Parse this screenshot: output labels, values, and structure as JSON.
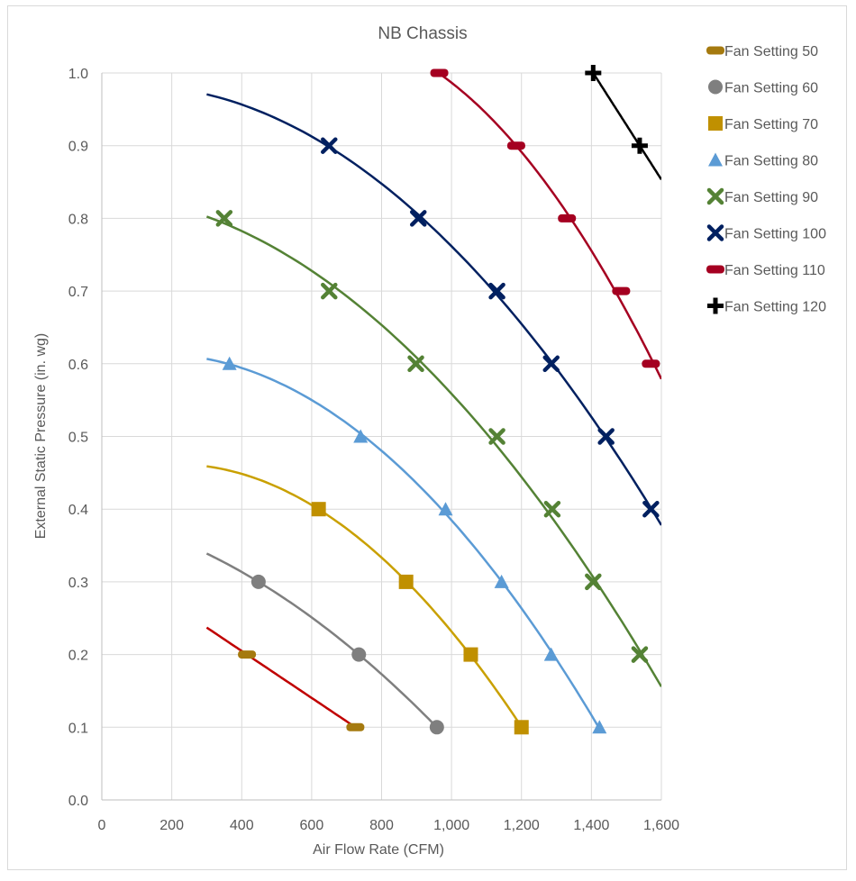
{
  "chart_data": {
    "type": "scatter",
    "title": "NB Chassis",
    "xlabel": "Air Flow Rate (CFM)",
    "ylabel": "External Static Pressure (in. wg)",
    "xlim": [
      0,
      1600
    ],
    "ylim": [
      0,
      1.0
    ],
    "x_ticks": [
      0,
      200,
      400,
      600,
      800,
      1000,
      1200,
      1400,
      1600
    ],
    "x_tick_labels": [
      "0",
      "200",
      "400",
      "600",
      "800",
      "1,000",
      "1,200",
      "1,400",
      "1,600"
    ],
    "y_ticks": [
      0,
      0.1,
      0.2,
      0.3,
      0.4,
      0.5,
      0.6,
      0.7,
      0.8,
      0.9,
      1.0
    ],
    "y_tick_labels": [
      "0.0",
      "0.1",
      "0.2",
      "0.3",
      "0.4",
      "0.5",
      "0.6",
      "0.7",
      "0.8",
      "0.9",
      "1.0"
    ],
    "grid": true,
    "legend_position": "right",
    "series": [
      {
        "name": "Fan Setting 50",
        "marker": "dash",
        "color": "#a57a0f",
        "trend_color": "#c00000",
        "trend_x": [
          300,
          728
        ],
        "points": [
          {
            "x": 415,
            "y": 0.2
          },
          {
            "x": 725,
            "y": 0.1
          }
        ]
      },
      {
        "name": "Fan Setting 60",
        "marker": "circle",
        "color": "#7f7f7f",
        "trend_color": "#7f7f7f",
        "trend_x": [
          300,
          960
        ],
        "points": [
          {
            "x": 448,
            "y": 0.3
          },
          {
            "x": 735,
            "y": 0.2
          },
          {
            "x": 958,
            "y": 0.1
          }
        ]
      },
      {
        "name": "Fan Setting 70",
        "marker": "square",
        "color": "#c09000",
        "trend_color": "#c9a000",
        "trend_x": [
          300,
          1203
        ],
        "points": [
          {
            "x": 620,
            "y": 0.4
          },
          {
            "x": 870,
            "y": 0.3
          },
          {
            "x": 1055,
            "y": 0.2
          },
          {
            "x": 1200,
            "y": 0.1
          }
        ]
      },
      {
        "name": "Fan Setting 80",
        "marker": "triangle",
        "color": "#5b9bd5",
        "trend_color": "#5b9bd5",
        "trend_x": [
          300,
          1425
        ],
        "points": [
          {
            "x": 365,
            "y": 0.6
          },
          {
            "x": 740,
            "y": 0.5
          },
          {
            "x": 983,
            "y": 0.4
          },
          {
            "x": 1143,
            "y": 0.3
          },
          {
            "x": 1285,
            "y": 0.2
          },
          {
            "x": 1423,
            "y": 0.1
          }
        ]
      },
      {
        "name": "Fan Setting 90",
        "marker": "x",
        "color": "#548235",
        "trend_color": "#548235",
        "trend_x": [
          300,
          1600
        ],
        "points": [
          {
            "x": 350,
            "y": 0.8
          },
          {
            "x": 650,
            "y": 0.7
          },
          {
            "x": 898,
            "y": 0.6
          },
          {
            "x": 1130,
            "y": 0.5
          },
          {
            "x": 1288,
            "y": 0.4
          },
          {
            "x": 1405,
            "y": 0.3
          },
          {
            "x": 1538,
            "y": 0.2
          }
        ]
      },
      {
        "name": "Fan Setting 100",
        "marker": "x",
        "color": "#002060",
        "trend_color": "#002060",
        "trend_x": [
          300,
          1600
        ],
        "points": [
          {
            "x": 650,
            "y": 0.9
          },
          {
            "x": 905,
            "y": 0.8
          },
          {
            "x": 1130,
            "y": 0.7
          },
          {
            "x": 1285,
            "y": 0.6
          },
          {
            "x": 1442,
            "y": 0.5
          },
          {
            "x": 1570,
            "y": 0.4
          }
        ]
      },
      {
        "name": "Fan Setting 110",
        "marker": "dash",
        "color": "#a50021",
        "trend_color": "#a50021",
        "trend_x": [
          960,
          1600
        ],
        "points": [
          {
            "x": 965,
            "y": 1.0
          },
          {
            "x": 1185,
            "y": 0.9
          },
          {
            "x": 1330,
            "y": 0.8
          },
          {
            "x": 1485,
            "y": 0.7
          },
          {
            "x": 1570,
            "y": 0.6
          }
        ]
      },
      {
        "name": "Fan Setting 120",
        "marker": "plus",
        "color": "#000000",
        "trend_color": "#000000",
        "trend_x": [
          1400,
          1600
        ],
        "points": [
          {
            "x": 1405,
            "y": 1.0
          },
          {
            "x": 1538,
            "y": 0.9
          }
        ]
      }
    ]
  }
}
